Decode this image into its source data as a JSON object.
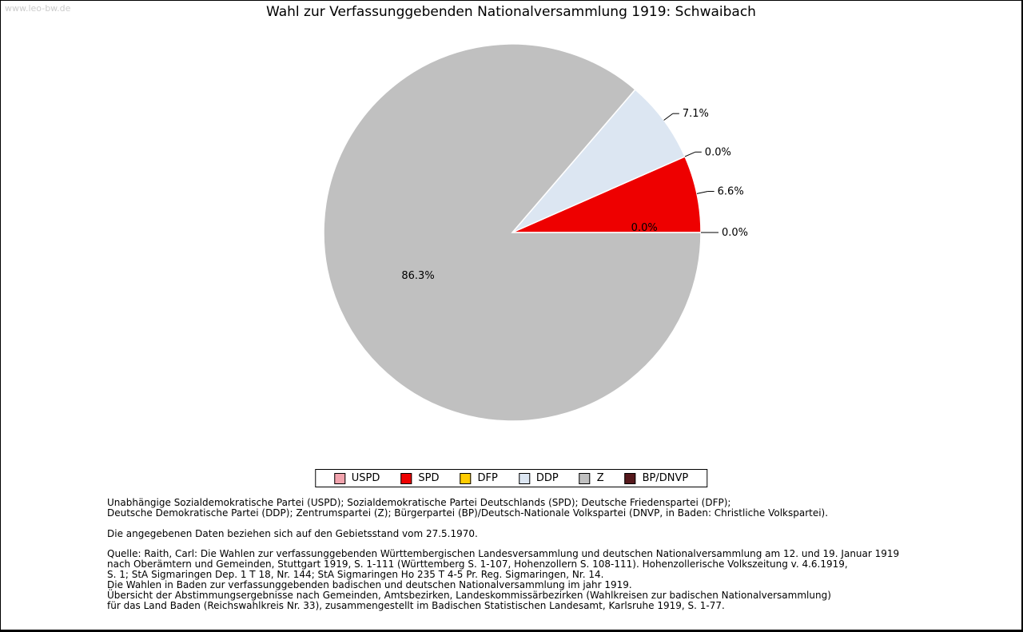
{
  "watermark": "www.leo-bw.de",
  "chart_data": {
    "type": "pie",
    "title": "Wahl zur Verfassunggebenden Nationalversammlung 1919: Schwaibach",
    "start_angle_deg": 0,
    "direction": "counterclockwise",
    "legend_position": "bottom",
    "slices": [
      {
        "label": "USPD",
        "value": 0.0,
        "display": "0.0%",
        "color": "#f2a3ad",
        "label_placement": "inside-edge"
      },
      {
        "label": "SPD",
        "value": 6.6,
        "display": "6.6%",
        "color": "#ee0000",
        "label_placement": "outside"
      },
      {
        "label": "DFP",
        "value": 0.0,
        "display": "0.0%",
        "color": "#ffcc00",
        "label_placement": "outside"
      },
      {
        "label": "DDP",
        "value": 7.1,
        "display": "7.1%",
        "color": "#dce6f2",
        "label_placement": "outside"
      },
      {
        "label": "Z",
        "value": 86.3,
        "display": "86.3%",
        "color": "#c0c0c0",
        "label_placement": "inside"
      },
      {
        "label": "BP/DNVP",
        "value": 0.0,
        "display": "0.0%",
        "color": "#56191c",
        "label_placement": "outside"
      }
    ]
  },
  "footer": {
    "party_note_lines": [
      "Unabhängige Sozialdemokratische Partei (USPD); Sozialdemokratische Partei Deutschlands (SPD); Deutsche Friedenspartei (DFP);",
      "Deutsche Demokratische Partei (DDP); Zentrumspartei (Z); Bürgerpartei (BP)/Deutsch-Nationale Volkspartei (DNVP, in Baden: Christliche Volkspartei)."
    ],
    "data_note": "Die angegebenen Daten beziehen sich auf den Gebietsstand vom 27.5.1970.",
    "source_lines": [
      "Quelle: Raith, Carl: Die Wahlen zur verfassunggebenden Württembergischen Landesversammlung und deutschen Nationalversammlung am 12. und 19. Januar 1919",
      "nach Oberämtern und Gemeinden, Stuttgart 1919, S. 1-111 (Württemberg S. 1-107, Hohenzollern S. 108-111). Hohenzollerische Volkszeitung v. 4.6.1919,",
      "S. 1; StA Sigmaringen Dep. 1 T 18, Nr. 144; StA Sigmaringen Ho 235 T 4-5 Pr. Reg. Sigmaringen, Nr. 14.",
      "Die Wahlen in Baden zur verfassunggebenden badischen und deutschen Nationalversammlung im jahr 1919.",
      "Übersicht der Abstimmungsergebnisse nach Gemeinden, Amtsbezirken, Landeskommissärbezirken (Wahlkreisen zur badischen Nationalversammlung)",
      "für das Land Baden (Reichswahlkreis Nr. 33), zusammengestellt im Badischen Statistischen Landesamt, Karlsruhe 1919, S. 1-77."
    ]
  }
}
